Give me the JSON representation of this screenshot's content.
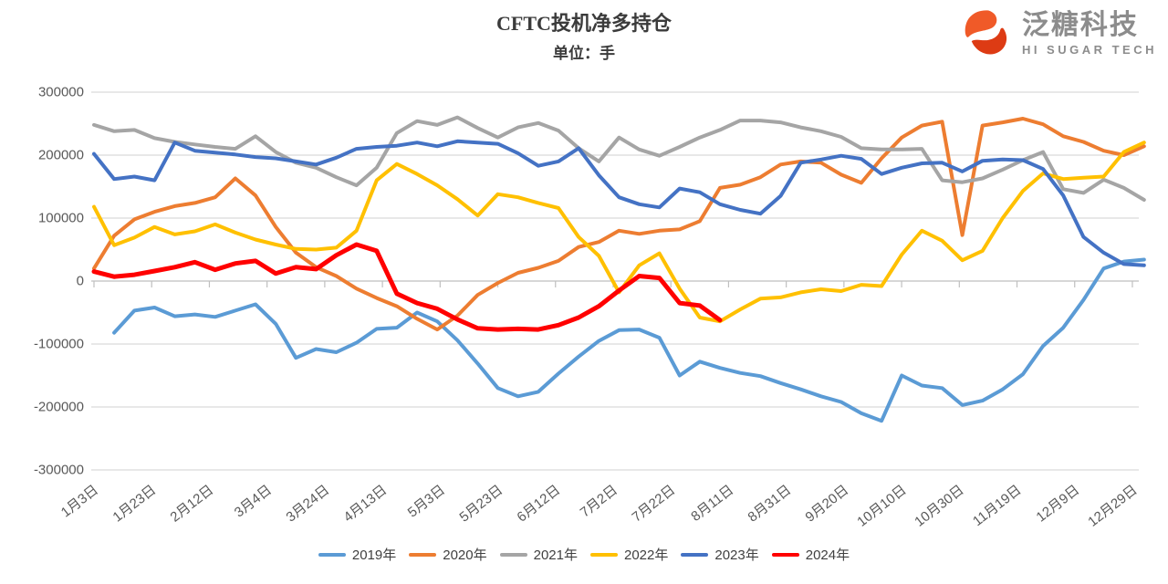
{
  "header": {
    "title": "CFTC投机净多持仓",
    "subtitle": "单位：手"
  },
  "logo": {
    "icon": "swirl-s-icon",
    "brand_cn": "泛糖科技",
    "brand_en": "HI SUGAR TECH",
    "icon_color_top": "#F05A28",
    "icon_color_bottom": "#DD3B14",
    "text_color": "#8C8C8C"
  },
  "chart_data": {
    "type": "line",
    "title": "CFTC投机净多持仓",
    "unit_label": "单位：手",
    "grid": true,
    "legend_position": "bottom",
    "ylim": [
      -300000,
      300000
    ],
    "y_ticks": [
      300000,
      200000,
      100000,
      0,
      -100000,
      -200000,
      -300000
    ],
    "x_tick_labels": [
      "1月3日",
      "1月23日",
      "2月12日",
      "3月4日",
      "3月24日",
      "4月13日",
      "5月3日",
      "5月23日",
      "6月12日",
      "7月2日",
      "7月22日",
      "8月11日",
      "8月31日",
      "9月20日",
      "10月10日",
      "10月30日",
      "11月19日",
      "12月9日",
      "12月29日"
    ],
    "x_note": "weekly points, index 0 = 1月3日, 7-day spacing, tick labels every 20 days",
    "series": [
      {
        "name": "2019年",
        "color": "#5B9BD5",
        "values": [
          null,
          -82000,
          -47000,
          -42000,
          -56000,
          -53000,
          -57000,
          -47000,
          -37000,
          -68000,
          -122000,
          -108000,
          -113000,
          -98000,
          -76000,
          -74000,
          -50000,
          -64000,
          -94000,
          -131000,
          -170000,
          -183000,
          -176000,
          -147000,
          -120000,
          -95000,
          -78000,
          -77000,
          -90000,
          -150000,
          -128000,
          -138000,
          -146000,
          -151000,
          -162000,
          -172000,
          -183000,
          -192000,
          -210000,
          -222000,
          -150000,
          -166000,
          -170000,
          -197000,
          -190000,
          -172000,
          -148000,
          -103000,
          -74000,
          -30000,
          20000,
          31000,
          34000
        ]
      },
      {
        "name": "2020年",
        "color": "#ED7D31",
        "values": [
          20000,
          72000,
          98000,
          110000,
          119000,
          124000,
          133000,
          163000,
          136000,
          86000,
          45000,
          22000,
          8000,
          -12000,
          -27000,
          -40000,
          -60000,
          -77000,
          -55000,
          -22000,
          -3000,
          13000,
          21000,
          32000,
          54000,
          62000,
          80000,
          75000,
          80000,
          82000,
          95000,
          148000,
          153000,
          165000,
          185000,
          190000,
          188000,
          169000,
          156000,
          195000,
          228000,
          247000,
          253000,
          73000,
          247000,
          252000,
          258000,
          249000,
          230000,
          221000,
          207000,
          200000,
          214000
        ]
      },
      {
        "name": "2021年",
        "color": "#A5A5A5",
        "values": [
          248000,
          238000,
          240000,
          227000,
          221000,
          217000,
          213000,
          210000,
          230000,
          205000,
          188000,
          180000,
          165000,
          152000,
          180000,
          235000,
          254000,
          248000,
          260000,
          243000,
          228000,
          244000,
          251000,
          239000,
          211000,
          190000,
          228000,
          209000,
          199000,
          213000,
          228000,
          240000,
          255000,
          255000,
          252000,
          244000,
          238000,
          229000,
          211000,
          209000,
          209000,
          210000,
          160000,
          157000,
          163000,
          177000,
          192000,
          205000,
          146000,
          140000,
          161000,
          148000,
          129000
        ]
      },
      {
        "name": "2022年",
        "color": "#FFC000",
        "values": [
          118000,
          57000,
          69000,
          86000,
          74000,
          79000,
          90000,
          77000,
          66000,
          58000,
          51000,
          50000,
          53000,
          80000,
          160000,
          186000,
          170000,
          152000,
          130000,
          104000,
          138000,
          133000,
          124000,
          116000,
          70000,
          40000,
          -18000,
          25000,
          44000,
          -12000,
          -58000,
          -64000,
          -45000,
          -28000,
          -26000,
          -18000,
          -13000,
          -16000,
          -6000,
          -8000,
          42000,
          80000,
          64000,
          33000,
          48000,
          100000,
          143000,
          171000,
          162000,
          164000,
          166000,
          205000,
          220000
        ]
      },
      {
        "name": "2023年",
        "color": "#4472C4",
        "values": [
          202000,
          162000,
          166000,
          160000,
          220000,
          207000,
          204000,
          201000,
          197000,
          195000,
          190000,
          185000,
          196000,
          210000,
          213000,
          215000,
          220000,
          214000,
          222000,
          220000,
          218000,
          203000,
          183000,
          190000,
          211000,
          168000,
          133000,
          122000,
          117000,
          147000,
          141000,
          122000,
          113000,
          107000,
          135000,
          188000,
          193000,
          199000,
          194000,
          170000,
          180000,
          187000,
          188000,
          174000,
          191000,
          193000,
          192000,
          178000,
          136000,
          70000,
          45000,
          27000,
          25000
        ]
      },
      {
        "name": "2024年",
        "color": "#FF0000",
        "values": [
          15000,
          7000,
          10000,
          16000,
          22000,
          30000,
          18000,
          28000,
          32000,
          12000,
          22000,
          19000,
          41000,
          58000,
          48000,
          -20000,
          -35000,
          -44000,
          -61000,
          -75000,
          -77000,
          -76000,
          -77000,
          -70000,
          -58000,
          -40000,
          -15000,
          8000,
          5000,
          -35000,
          -39000,
          -62000,
          null,
          null,
          null,
          null,
          null,
          null,
          null,
          null,
          null,
          null,
          null,
          null,
          null,
          null,
          null,
          null,
          null,
          null,
          null,
          null,
          null
        ]
      }
    ]
  }
}
